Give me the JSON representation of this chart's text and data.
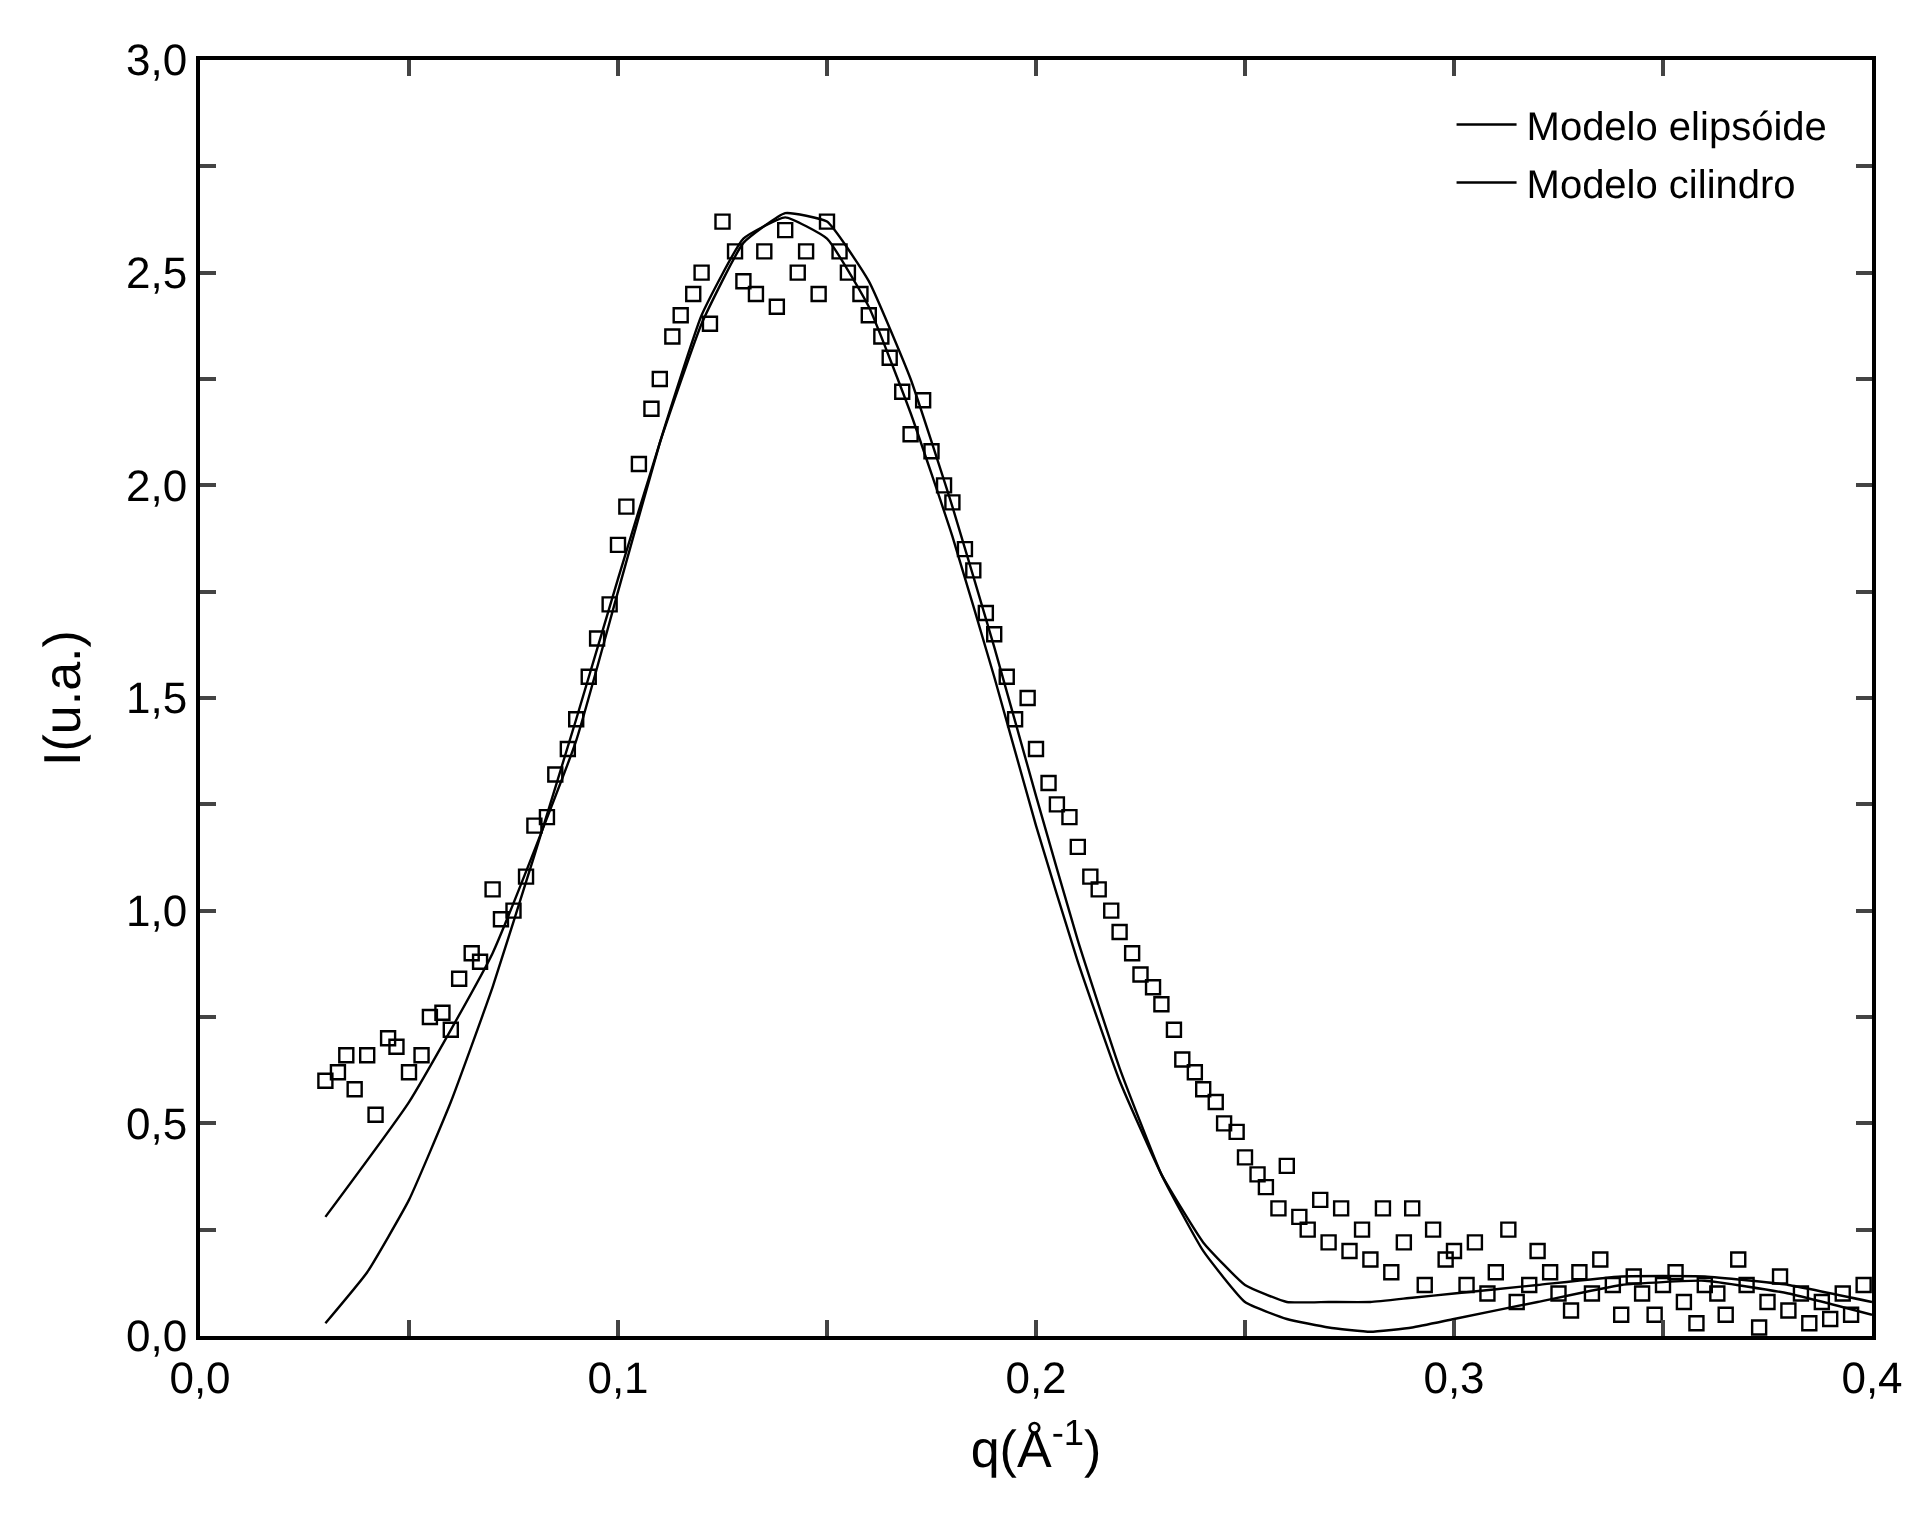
{
  "chart_data": {
    "type": "line",
    "xlabel": "q(Å$^{-1}$)",
    "ylabel": "I(u.a.)",
    "xlim": [
      0.0,
      0.4
    ],
    "ylim": [
      0.0,
      3.0
    ],
    "xticks": [
      {
        "value": 0.0,
        "label": "0,0"
      },
      {
        "value": 0.05,
        "label": null
      },
      {
        "value": 0.1,
        "label": "0,1"
      },
      {
        "value": 0.15,
        "label": null
      },
      {
        "value": 0.2,
        "label": "0,2"
      },
      {
        "value": 0.25,
        "label": null
      },
      {
        "value": 0.3,
        "label": "0,3"
      },
      {
        "value": 0.35,
        "label": null
      },
      {
        "value": 0.4,
        "label": "0,4"
      }
    ],
    "yticks": [
      {
        "value": 0.0,
        "label": "0,0"
      },
      {
        "value": 0.25,
        "label": null
      },
      {
        "value": 0.5,
        "label": "0,5"
      },
      {
        "value": 0.75,
        "label": null
      },
      {
        "value": 1.0,
        "label": "1,0"
      },
      {
        "value": 1.25,
        "label": null
      },
      {
        "value": 1.5,
        "label": "1,5"
      },
      {
        "value": 1.75,
        "label": null
      },
      {
        "value": 2.0,
        "label": "2,0"
      },
      {
        "value": 2.25,
        "label": null
      },
      {
        "value": 2.5,
        "label": "2,5"
      },
      {
        "value": 2.75,
        "label": null
      },
      {
        "value": 3.0,
        "label": "3,0"
      }
    ],
    "legend": "top right",
    "series": [
      {
        "type": "scatter",
        "marker": "square",
        "color": "#000000",
        "x": [
          0.03,
          0.033,
          0.035,
          0.037,
          0.04,
          0.042,
          0.045,
          0.047,
          0.05,
          0.053,
          0.055,
          0.058,
          0.06,
          0.062,
          0.065,
          0.067,
          0.07,
          0.072,
          0.075,
          0.078,
          0.08,
          0.083,
          0.085,
          0.088,
          0.09,
          0.093,
          0.095,
          0.098,
          0.1,
          0.102,
          0.105,
          0.108,
          0.11,
          0.113,
          0.115,
          0.118,
          0.12,
          0.122,
          0.125,
          0.128,
          0.13,
          0.133,
          0.135,
          0.138,
          0.14,
          0.143,
          0.145,
          0.148,
          0.15,
          0.153,
          0.155,
          0.158,
          0.16,
          0.163,
          0.165,
          0.168,
          0.17,
          0.173,
          0.175,
          0.178,
          0.18,
          0.183,
          0.185,
          0.188,
          0.19,
          0.193,
          0.195,
          0.198,
          0.2,
          0.203,
          0.205,
          0.208,
          0.21,
          0.213,
          0.215,
          0.218,
          0.22,
          0.223,
          0.225,
          0.228,
          0.23,
          0.233,
          0.235,
          0.238,
          0.24,
          0.243,
          0.245,
          0.248,
          0.25,
          0.253,
          0.255,
          0.258,
          0.26,
          0.263,
          0.265,
          0.268,
          0.27,
          0.273,
          0.275,
          0.278,
          0.28,
          0.283,
          0.285,
          0.288,
          0.29,
          0.293,
          0.295,
          0.298,
          0.3,
          0.303,
          0.305,
          0.308,
          0.31,
          0.313,
          0.315,
          0.318,
          0.32,
          0.323,
          0.325,
          0.328,
          0.33,
          0.333,
          0.335,
          0.338,
          0.34,
          0.343,
          0.345,
          0.348,
          0.35,
          0.353,
          0.355,
          0.358,
          0.36,
          0.363,
          0.365,
          0.368,
          0.37,
          0.373,
          0.375,
          0.378,
          0.38,
          0.383,
          0.385,
          0.388,
          0.39,
          0.393,
          0.395,
          0.398
        ],
        "values": [
          0.6,
          0.62,
          0.66,
          0.58,
          0.66,
          0.52,
          0.7,
          0.68,
          0.62,
          0.66,
          0.75,
          0.76,
          0.72,
          0.84,
          0.9,
          0.88,
          1.05,
          0.98,
          1.0,
          1.08,
          1.2,
          1.22,
          1.32,
          1.38,
          1.45,
          1.55,
          1.64,
          1.72,
          1.86,
          1.95,
          2.05,
          2.18,
          2.25,
          2.35,
          2.4,
          2.45,
          2.5,
          2.38,
          2.62,
          2.55,
          2.48,
          2.45,
          2.55,
          2.42,
          2.6,
          2.5,
          2.55,
          2.45,
          2.62,
          2.55,
          2.5,
          2.45,
          2.4,
          2.35,
          2.3,
          2.22,
          2.12,
          2.2,
          2.08,
          2.0,
          1.96,
          1.85,
          1.8,
          1.7,
          1.65,
          1.55,
          1.45,
          1.5,
          1.38,
          1.3,
          1.25,
          1.22,
          1.15,
          1.08,
          1.05,
          1.0,
          0.95,
          0.9,
          0.85,
          0.82,
          0.78,
          0.72,
          0.65,
          0.62,
          0.58,
          0.55,
          0.5,
          0.48,
          0.42,
          0.38,
          0.35,
          0.3,
          0.4,
          0.28,
          0.25,
          0.32,
          0.22,
          0.3,
          0.2,
          0.25,
          0.18,
          0.3,
          0.15,
          0.22,
          0.3,
          0.12,
          0.25,
          0.18,
          0.2,
          0.12,
          0.22,
          0.1,
          0.15,
          0.25,
          0.08,
          0.12,
          0.2,
          0.15,
          0.1,
          0.06,
          0.15,
          0.1,
          0.18,
          0.12,
          0.05,
          0.14,
          0.1,
          0.05,
          0.12,
          0.15,
          0.08,
          0.03,
          0.12,
          0.1,
          0.05,
          0.18,
          0.12,
          0.02,
          0.08,
          0.14,
          0.06,
          0.1,
          0.03,
          0.08,
          0.04,
          0.1,
          0.05,
          0.12
        ]
      },
      {
        "name": "Modelo elipsóide",
        "color": "#000000",
        "marker": "none",
        "line_style": "solid",
        "x": [
          0.03,
          0.05,
          0.07,
          0.09,
          0.1,
          0.11,
          0.12,
          0.13,
          0.14,
          0.15,
          0.16,
          0.17,
          0.18,
          0.19,
          0.2,
          0.21,
          0.22,
          0.23,
          0.24,
          0.25,
          0.26,
          0.27,
          0.28,
          0.29,
          0.3,
          0.32,
          0.34,
          0.36,
          0.38,
          0.4
        ],
        "values": [
          0.28,
          0.55,
          0.9,
          1.4,
          1.75,
          2.1,
          2.4,
          2.58,
          2.63,
          2.58,
          2.42,
          2.17,
          1.88,
          1.55,
          1.2,
          0.88,
          0.6,
          0.38,
          0.22,
          0.12,
          0.08,
          0.08,
          0.08,
          0.09,
          0.1,
          0.12,
          0.14,
          0.14,
          0.12,
          0.08
        ]
      },
      {
        "name": "Modelo cilindro",
        "color": "#000000",
        "marker": "none",
        "line_style": "solid",
        "x": [
          0.03,
          0.04,
          0.05,
          0.06,
          0.07,
          0.08,
          0.09,
          0.1,
          0.11,
          0.12,
          0.13,
          0.14,
          0.15,
          0.16,
          0.17,
          0.18,
          0.19,
          0.2,
          0.21,
          0.22,
          0.23,
          0.24,
          0.25,
          0.26,
          0.27,
          0.28,
          0.29,
          0.3,
          0.32,
          0.34,
          0.36,
          0.38,
          0.4
        ],
        "values": [
          0.03,
          0.15,
          0.32,
          0.55,
          0.82,
          1.13,
          1.45,
          1.78,
          2.1,
          2.38,
          2.57,
          2.64,
          2.62,
          2.48,
          2.25,
          1.95,
          1.62,
          1.27,
          0.93,
          0.63,
          0.38,
          0.2,
          0.08,
          0.04,
          0.02,
          0.01,
          0.02,
          0.04,
          0.08,
          0.12,
          0.13,
          0.1,
          0.05
        ]
      }
    ]
  }
}
